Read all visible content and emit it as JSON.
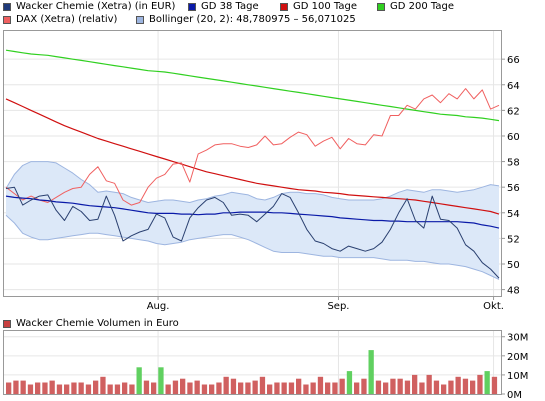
{
  "legend": [
    {
      "label": "Wacker Chemie (Xetra) (in EUR)",
      "color": "#1f3a7a"
    },
    {
      "label": "GD 38 Tage",
      "color": "#0a1aa8"
    },
    {
      "label": "GD 100 Tage",
      "color": "#d01010"
    },
    {
      "label": "GD 200 Tage",
      "color": "#30d020"
    },
    {
      "label": "DAX (Xetra) (relativ)",
      "color": "#f06060"
    },
    {
      "label": "Bollinger (20, 2): 48,780975 – 56,071025",
      "color": "#9db5e0"
    }
  ],
  "volume_title": "Wacker Chemie Volumen in Euro",
  "volume_color": "#c84040",
  "chart_data": [
    {
      "type": "line",
      "title": "",
      "x_labels": [
        "Aug.",
        "Sep.",
        "Okt."
      ],
      "yticks": [
        "48",
        "50",
        "52",
        "54",
        "56",
        "58",
        "60",
        "62",
        "64",
        "66"
      ],
      "ylim": [
        47.5,
        68.2
      ],
      "grid": true,
      "colors": {
        "price": "#2a4070",
        "gd38": "#0a1aa8",
        "gd100": "#d01010",
        "gd200": "#30d020",
        "dax": "#f06060",
        "band_fill": "#dce8f8",
        "band_line": "#9db5e0"
      },
      "series": [
        {
          "name": "Wacker Chemie (Xetra) (in EUR)",
          "values": [
            55.9,
            56.0,
            54.6,
            55.0,
            55.3,
            55.4,
            54.2,
            53.4,
            54.5,
            54.1,
            53.4,
            53.5,
            55.3,
            53.8,
            51.8,
            52.2,
            52.5,
            52.7,
            53.9,
            53.6,
            52.1,
            51.8,
            53.6,
            54.4,
            55.0,
            55.2,
            54.8,
            53.8,
            53.9,
            53.8,
            53.3,
            53.9,
            54.5,
            55.5,
            55.2,
            54.0,
            52.7,
            51.8,
            51.6,
            51.2,
            51.0,
            51.4,
            51.2,
            51.0,
            51.2,
            51.7,
            52.7,
            54.0,
            55.1,
            53.4,
            52.8,
            55.3,
            53.5,
            53.4,
            52.8,
            51.5,
            51.0,
            50.1,
            49.6,
            48.9
          ]
        },
        {
          "name": "GD 38 Tage",
          "values": [
            55.3,
            55.2,
            55.15,
            55.1,
            55.0,
            54.95,
            54.85,
            54.8,
            54.75,
            54.65,
            54.55,
            54.5,
            54.45,
            54.4,
            54.3,
            54.2,
            54.1,
            54.0,
            53.95,
            53.95,
            53.95,
            53.9,
            53.9,
            53.85,
            53.9,
            53.9,
            54.0,
            54.0,
            54.05,
            54.05,
            54.05,
            54.05,
            54.0,
            54.0,
            53.95,
            53.9,
            53.85,
            53.8,
            53.75,
            53.7,
            53.6,
            53.55,
            53.5,
            53.45,
            53.4,
            53.4,
            53.35,
            53.35,
            53.3,
            53.3,
            53.3,
            53.3,
            53.3,
            53.3,
            53.3,
            53.25,
            53.2,
            53.05,
            52.95,
            52.8
          ]
        },
        {
          "name": "GD 100 Tage",
          "values": [
            62.9,
            62.6,
            62.3,
            62.0,
            61.7,
            61.4,
            61.1,
            60.8,
            60.55,
            60.3,
            60.05,
            59.8,
            59.6,
            59.4,
            59.2,
            59.0,
            58.8,
            58.6,
            58.4,
            58.2,
            58.0,
            57.8,
            57.6,
            57.4,
            57.2,
            57.05,
            56.9,
            56.75,
            56.6,
            56.45,
            56.3,
            56.2,
            56.1,
            56.0,
            55.9,
            55.8,
            55.75,
            55.7,
            55.6,
            55.55,
            55.5,
            55.4,
            55.35,
            55.3,
            55.25,
            55.2,
            55.15,
            55.1,
            55.05,
            55.0,
            54.9,
            54.8,
            54.7,
            54.6,
            54.5,
            54.4,
            54.3,
            54.2,
            54.1,
            53.9
          ]
        },
        {
          "name": "GD 200 Tage",
          "values": [
            66.7,
            66.6,
            66.5,
            66.4,
            66.35,
            66.3,
            66.2,
            66.1,
            66.0,
            65.9,
            65.8,
            65.7,
            65.6,
            65.5,
            65.4,
            65.3,
            65.2,
            65.1,
            65.05,
            65.0,
            64.9,
            64.8,
            64.7,
            64.6,
            64.5,
            64.4,
            64.3,
            64.2,
            64.1,
            64.0,
            63.9,
            63.8,
            63.7,
            63.6,
            63.5,
            63.4,
            63.3,
            63.2,
            63.1,
            63.0,
            62.9,
            62.8,
            62.7,
            62.6,
            62.5,
            62.4,
            62.3,
            62.2,
            62.1,
            62.0,
            61.9,
            61.8,
            61.7,
            61.65,
            61.6,
            61.5,
            61.45,
            61.4,
            61.3,
            61.2
          ]
        },
        {
          "name": "DAX (Xetra) (relativ)",
          "values": [
            56.0,
            55.5,
            55.0,
            55.3,
            55.0,
            54.8,
            55.2,
            55.6,
            55.9,
            56.0,
            57.0,
            57.6,
            56.5,
            56.3,
            55.0,
            54.6,
            54.8,
            56.0,
            56.7,
            57.0,
            57.8,
            57.9,
            56.4,
            58.6,
            58.9,
            59.3,
            59.4,
            59.4,
            59.2,
            59.1,
            59.3,
            60.0,
            59.3,
            59.4,
            59.9,
            60.3,
            60.1,
            59.2,
            59.6,
            59.9,
            59.0,
            59.8,
            59.4,
            59.3,
            60.1,
            60.0,
            61.6,
            61.6,
            62.4,
            62.1,
            62.9,
            63.2,
            62.6,
            63.3,
            62.9,
            63.7,
            62.9,
            63.6,
            62.1,
            62.4
          ]
        },
        {
          "name": "Bollinger oben",
          "values": [
            55.9,
            57.0,
            57.7,
            58.0,
            58.0,
            58.0,
            57.9,
            57.5,
            57.1,
            56.6,
            56.2,
            55.6,
            55.7,
            55.6,
            55.5,
            55.2,
            55.0,
            54.8,
            54.9,
            55.0,
            55.0,
            54.9,
            54.8,
            55.0,
            55.1,
            55.3,
            55.4,
            55.6,
            55.5,
            55.4,
            55.1,
            55.0,
            55.2,
            55.5,
            55.6,
            55.6,
            55.5,
            55.5,
            55.4,
            55.2,
            55.1,
            55.0,
            55.0,
            55.0,
            55.0,
            55.1,
            55.3,
            55.6,
            55.8,
            55.7,
            55.6,
            55.8,
            55.8,
            55.7,
            55.6,
            55.7,
            55.8,
            56.0,
            56.2,
            56.1
          ]
        },
        {
          "name": "Bollinger unten",
          "values": [
            53.8,
            53.2,
            52.4,
            52.1,
            51.9,
            51.9,
            52.0,
            52.1,
            52.2,
            52.3,
            52.4,
            52.4,
            52.3,
            52.2,
            52.1,
            52.0,
            51.9,
            51.8,
            51.6,
            51.5,
            51.6,
            51.7,
            51.9,
            52.0,
            52.1,
            52.2,
            52.3,
            52.3,
            52.1,
            51.9,
            51.6,
            51.3,
            51.0,
            50.9,
            50.9,
            50.9,
            50.8,
            50.7,
            50.6,
            50.6,
            50.5,
            50.5,
            50.5,
            50.5,
            50.5,
            50.4,
            50.3,
            50.3,
            50.3,
            50.2,
            50.2,
            50.1,
            50.0,
            50.0,
            49.9,
            49.8,
            49.6,
            49.4,
            49.1,
            48.8
          ]
        }
      ]
    },
    {
      "type": "bar",
      "title": "Wacker Chemie Volumen in Euro",
      "yticks": [
        "0M",
        "10M",
        "20M",
        "30M"
      ],
      "ylim": [
        0,
        33
      ],
      "grid": true,
      "series": [
        {
          "name": "Volumen",
          "values": [
            6,
            7,
            7,
            5,
            6,
            6,
            7,
            5,
            5,
            6,
            6,
            5,
            7,
            9,
            5,
            5,
            6,
            5,
            14,
            7,
            6,
            14,
            5,
            7,
            8,
            6,
            7,
            5,
            5,
            6,
            9,
            8,
            6,
            6,
            7,
            9,
            5,
            6,
            6,
            6,
            8,
            5,
            6,
            9,
            6,
            6,
            8,
            12,
            6,
            8,
            23,
            7,
            6,
            8,
            8,
            7,
            10,
            6,
            10,
            7,
            5,
            7,
            9,
            8,
            7,
            10,
            12,
            9
          ]
        }
      ]
    }
  ]
}
